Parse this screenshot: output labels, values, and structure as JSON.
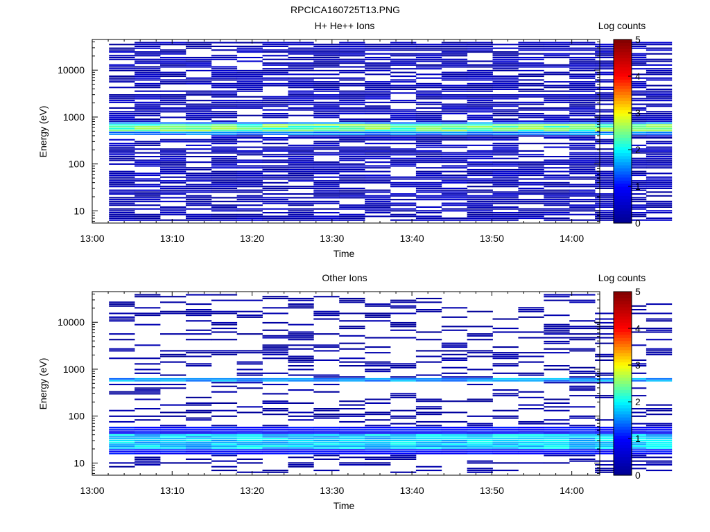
{
  "figure_title": "RPCICA160725T13.PNG",
  "colorbar_label": "Log counts",
  "colormap": [
    "#00008f",
    "#0000ff",
    "#00ffff",
    "#ffff00",
    "#ff0000",
    "#800000"
  ],
  "chart_data": [
    {
      "type": "heatmap",
      "title": "H+ He++ Ions",
      "xlabel": "Time",
      "ylabel": "Energy (eV)",
      "xticks": [
        "13:00",
        "13:10",
        "13:20",
        "13:30",
        "13:40",
        "13:50",
        "14:00"
      ],
      "xlim_minutes": [
        0,
        63.5
      ],
      "yscale": "log",
      "ylim": [
        5.5,
        45000
      ],
      "yticks": [
        "10",
        "100",
        "1000",
        "10000"
      ],
      "clim": [
        0,
        5
      ],
      "cticks": [
        "0",
        "1",
        "2",
        "3",
        "4",
        "5"
      ],
      "time_bins_start_minutes": 2.1,
      "time_bin_width_minutes": 3.2,
      "n_time_bins": 22,
      "energy_range_eV": [
        6,
        40000
      ],
      "n_energy_bins": 96,
      "bands": [
        {
          "emin": 480,
          "emax": 700,
          "level": 2.4
        },
        {
          "emin": 420,
          "emax": 800,
          "level": 1.5
        }
      ],
      "background_level": 0.35,
      "fill_density": 0.72
    },
    {
      "type": "heatmap",
      "title": "Other Ions",
      "xlabel": "Time",
      "ylabel": "Energy (eV)",
      "xticks": [
        "13:00",
        "13:10",
        "13:20",
        "13:30",
        "13:40",
        "13:50",
        "14:00"
      ],
      "xlim_minutes": [
        0,
        63.5
      ],
      "yscale": "log",
      "ylim": [
        5.5,
        45000
      ],
      "yticks": [
        "10",
        "100",
        "1000",
        "10000"
      ],
      "clim": [
        0,
        5
      ],
      "cticks": [
        "0",
        "1",
        "2",
        "3",
        "4",
        "5"
      ],
      "time_bins_start_minutes": 2.1,
      "time_bin_width_minutes": 3.2,
      "n_time_bins": 22,
      "energy_range_eV": [
        6,
        40000
      ],
      "n_energy_bins": 96,
      "bands": [
        {
          "emin": 550,
          "emax": 650,
          "level": 1.6
        },
        {
          "emin": 20,
          "emax": 40,
          "level": 1.8
        },
        {
          "emin": 15,
          "emax": 60,
          "level": 1.0
        }
      ],
      "background_level": 0.2,
      "fill_density": 0.28
    }
  ]
}
